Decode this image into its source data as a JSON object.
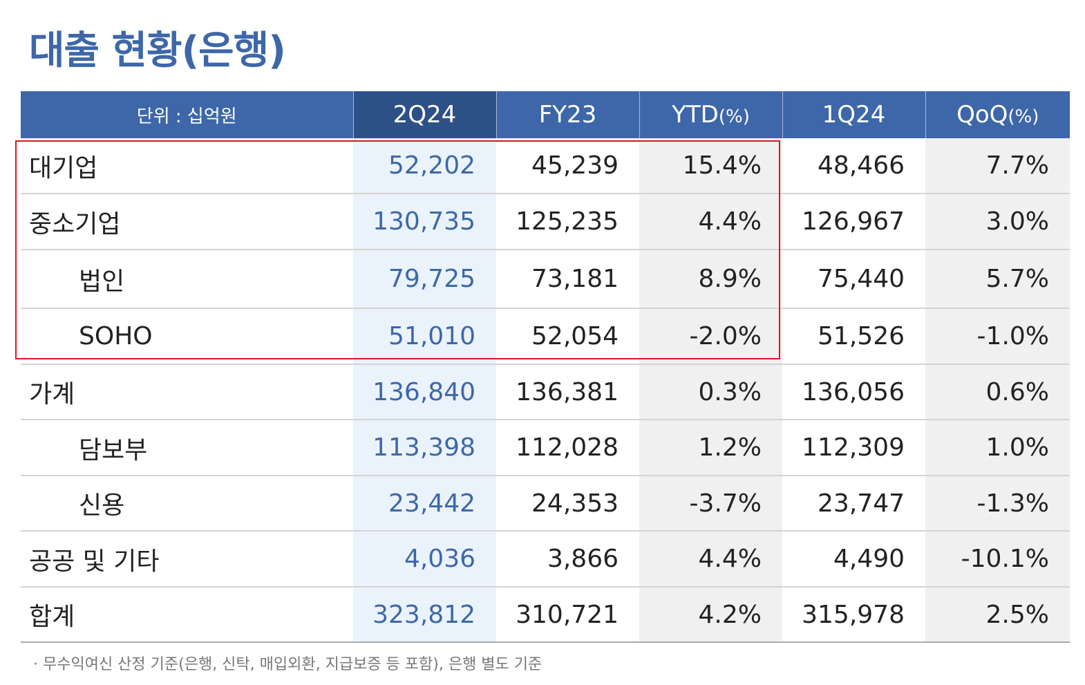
{
  "title": "대출 현황(은행)",
  "header": {
    "unit": "단위 : 십억원",
    "cols": [
      "2Q24",
      "FY23",
      "YTD",
      "1Q24",
      "QoQ"
    ],
    "pct": "(%)"
  },
  "rows": [
    {
      "label": "대기업",
      "v": [
        "52,202",
        "45,239",
        "15.4%",
        "48,466",
        "7.7%"
      ],
      "indent": false
    },
    {
      "label": "중소기업",
      "v": [
        "130,735",
        "125,235",
        "4.4%",
        "126,967",
        "3.0%"
      ],
      "indent": false
    },
    {
      "label": "법인",
      "v": [
        "79,725",
        "73,181",
        "8.9%",
        "75,440",
        "5.7%"
      ],
      "indent": true
    },
    {
      "label": "SOHO",
      "v": [
        "51,010",
        "52,054",
        "-2.0%",
        "51,526",
        "-1.0%"
      ],
      "indent": true
    },
    {
      "label": "가계",
      "v": [
        "136,840",
        "136,381",
        "0.3%",
        "136,056",
        "0.6%"
      ],
      "indent": false
    },
    {
      "label": "담보부",
      "v": [
        "113,398",
        "112,028",
        "1.2%",
        "112,309",
        "1.0%"
      ],
      "indent": true
    },
    {
      "label": "신용",
      "v": [
        "23,442",
        "24,353",
        "-3.7%",
        "23,747",
        "-1.3%"
      ],
      "indent": true
    },
    {
      "label": "공공 및 기타",
      "v": [
        "4,036",
        "3,866",
        "4.4%",
        "4,490",
        "-10.1%"
      ],
      "indent": false
    },
    {
      "label": "합계",
      "v": [
        "323,812",
        "310,721",
        "4.2%",
        "315,978",
        "2.5%"
      ],
      "indent": false
    }
  ],
  "note": "· 무수익여신 산정 기준(은행, 신탁, 매입외환, 지급보증 등 포함), 은행 별도 기준"
}
